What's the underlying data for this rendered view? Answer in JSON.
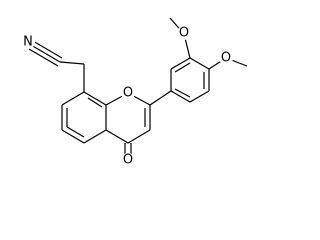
{
  "atoms": [
    "N",
    "O",
    "O",
    "O",
    "O"
  ]
}
